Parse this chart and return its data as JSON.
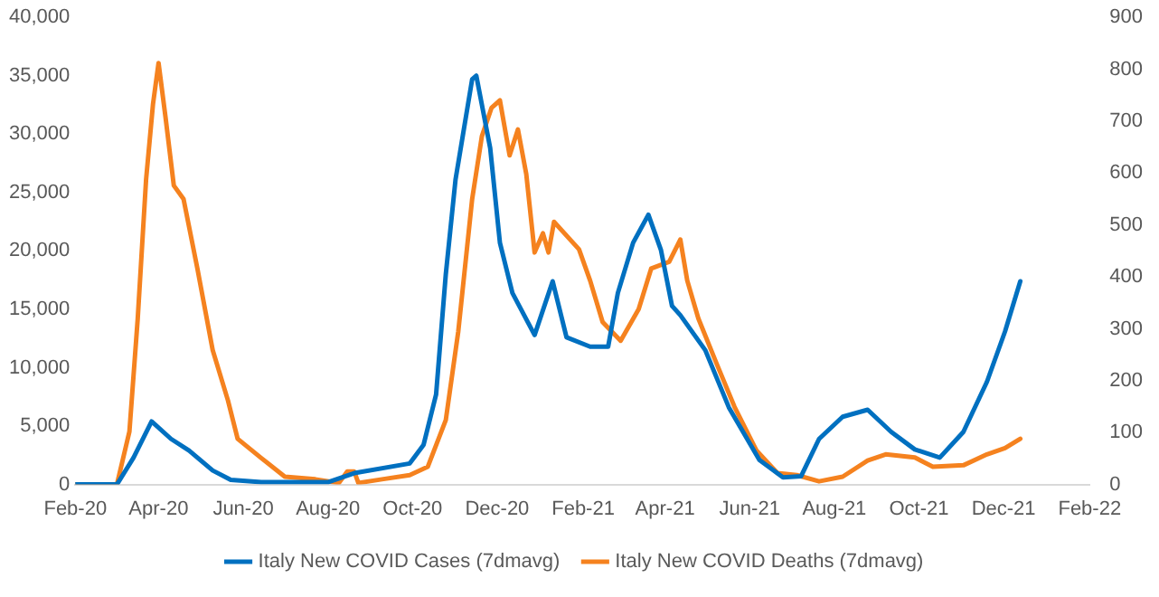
{
  "chart_data": {
    "type": "line",
    "legend": "bottom",
    "marker": "none",
    "line_style": "solid",
    "grid": false,
    "xlim": [
      "2020-02-01",
      "2022-02-01"
    ],
    "xticks": [
      {
        "value": "2020-02-01",
        "label": "Feb-20"
      },
      {
        "value": "2020-04-01",
        "label": "Apr-20"
      },
      {
        "value": "2020-06-01",
        "label": "Jun-20"
      },
      {
        "value": "2020-08-01",
        "label": "Aug-20"
      },
      {
        "value": "2020-10-01",
        "label": "Oct-20"
      },
      {
        "value": "2020-12-01",
        "label": "Dec-20"
      },
      {
        "value": "2021-02-01",
        "label": "Feb-21"
      },
      {
        "value": "2021-04-01",
        "label": "Apr-21"
      },
      {
        "value": "2021-06-01",
        "label": "Jun-21"
      },
      {
        "value": "2021-08-01",
        "label": "Aug-21"
      },
      {
        "value": "2021-10-01",
        "label": "Oct-21"
      },
      {
        "value": "2021-12-01",
        "label": "Dec-21"
      },
      {
        "value": "2022-02-01",
        "label": "Feb-22"
      }
    ],
    "ylim": [
      0,
      40000
    ],
    "yticks": [
      0,
      {
        "value": 5000,
        "label": "5,000"
      },
      {
        "value": 10000,
        "label": "10,000"
      },
      {
        "value": 15000,
        "label": "15,000"
      },
      {
        "value": 20000,
        "label": "20,000"
      },
      {
        "value": 25000,
        "label": "25,000"
      },
      {
        "value": 30000,
        "label": "30,000"
      },
      {
        "value": 35000,
        "label": "35,000"
      },
      {
        "value": 40000,
        "label": "40,000"
      }
    ],
    "y2lim": [
      0,
      900
    ],
    "y2ticks": [
      0,
      100,
      200,
      300,
      400,
      500,
      600,
      700,
      800,
      900
    ],
    "series": [
      {
        "name": "Italy New COVID Cases (7dmavg)",
        "color": "#0070c0",
        "x": [
          "2020-02-01",
          "2020-03-02",
          "2020-03-14",
          "2020-03-27",
          "2020-04-10",
          "2020-04-23",
          "2020-05-10",
          "2020-05-23",
          "2020-06-14",
          "2020-08-01",
          "2020-08-21",
          "2020-09-29",
          "2020-10-09",
          "2020-10-18",
          "2020-10-25",
          "2020-11-01",
          "2020-11-13",
          "2020-11-16",
          "2020-11-26",
          "2020-12-03",
          "2020-12-12",
          "2020-12-28",
          "2021-01-10",
          "2021-01-20",
          "2021-02-06",
          "2021-02-19",
          "2021-02-26",
          "2021-03-09",
          "2021-03-20",
          "2021-03-29",
          "2021-04-06",
          "2021-04-12",
          "2021-04-30",
          "2021-05-17",
          "2021-06-08",
          "2021-06-25",
          "2021-07-08",
          "2021-07-21",
          "2021-08-07",
          "2021-08-25",
          "2021-09-11",
          "2021-09-28",
          "2021-10-16",
          "2021-11-02",
          "2021-11-19",
          "2021-12-02",
          "2021-12-13"
        ],
        "values": [
          0,
          0,
          2300,
          5400,
          3900,
          2900,
          1200,
          400,
          200,
          200,
          1000,
          1800,
          3400,
          7700,
          18000,
          26100,
          34700,
          35000,
          28800,
          20700,
          16400,
          12800,
          17400,
          12600,
          11800,
          11800,
          16400,
          20700,
          23100,
          20100,
          15300,
          14500,
          11500,
          6600,
          2100,
          600,
          700,
          3900,
          5800,
          6400,
          4500,
          3000,
          2300,
          4500,
          8800,
          13100,
          17400
        ]
      },
      {
        "name": "Italy New COVID Deaths (7dmavg)",
        "color": "#f5821f",
        "axis": "y2",
        "x": [
          "2020-02-01",
          "2020-03-02",
          "2020-03-11",
          "2020-03-17",
          "2020-03-23",
          "2020-03-28",
          "2020-04-01",
          "2020-04-06",
          "2020-04-12",
          "2020-04-19",
          "2020-04-29",
          "2020-05-10",
          "2020-05-21",
          "2020-05-28",
          "2020-06-14",
          "2020-07-01",
          "2020-07-23",
          "2020-08-09",
          "2020-08-15",
          "2020-08-20",
          "2020-08-23",
          "2020-09-09",
          "2020-09-29",
          "2020-10-12",
          "2020-10-25",
          "2020-11-03",
          "2020-11-13",
          "2020-11-20",
          "2020-11-27",
          "2020-12-03",
          "2020-12-10",
          "2020-12-16",
          "2020-12-22",
          "2020-12-28",
          "2021-01-03",
          "2021-01-07",
          "2021-01-11",
          "2021-01-29",
          "2021-02-06",
          "2021-02-15",
          "2021-02-28",
          "2021-03-13",
          "2021-03-22",
          "2021-04-04",
          "2021-04-12",
          "2021-04-17",
          "2021-04-25",
          "2021-05-08",
          "2021-05-21",
          "2021-06-06",
          "2021-06-21",
          "2021-07-05",
          "2021-07-21",
          "2021-08-07",
          "2021-08-25",
          "2021-09-07",
          "2021-09-28",
          "2021-10-11",
          "2021-11-02",
          "2021-11-19",
          "2021-12-02",
          "2021-12-13"
        ],
        "values": [
          0,
          0,
          102,
          320,
          587,
          733,
          812,
          708,
          576,
          550,
          416,
          259,
          162,
          88,
          51,
          15,
          10,
          3,
          25,
          25,
          3,
          10,
          18,
          34,
          124,
          295,
          550,
          671,
          726,
          740,
          634,
          684,
          598,
          447,
          484,
          447,
          506,
          453,
          393,
          313,
          277,
          338,
          416,
          429,
          472,
          393,
          320,
          234,
          150,
          65,
          22,
          18,
          6,
          15,
          46,
          58,
          52,
          34,
          37,
          58,
          70,
          88
        ]
      }
    ]
  }
}
